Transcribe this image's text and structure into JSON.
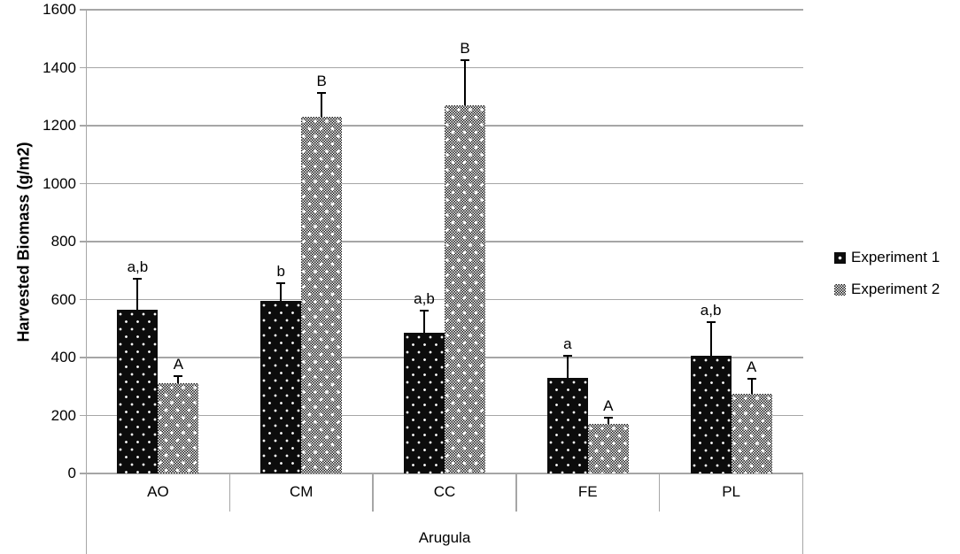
{
  "chart_data": {
    "type": "bar",
    "title": "",
    "ylabel": "Harvested Biomass (g/m2)",
    "xlabel": "",
    "x_group_label": "Arugula",
    "categories": [
      "AO",
      "CM",
      "CC",
      "FE",
      "PL"
    ],
    "ylim": [
      0,
      1600
    ],
    "ytick_step": 200,
    "yticks": [
      "0",
      "200",
      "400",
      "600",
      "800",
      "1000",
      "1200",
      "1400",
      "1600"
    ],
    "grid": true,
    "legend_position": "right",
    "series": [
      {
        "name": "Experiment 1",
        "pattern": "black-with-white-dots",
        "values": [
          565,
          595,
          485,
          330,
          405
        ],
        "error_plus": [
          110,
          65,
          80,
          80,
          120
        ],
        "sig_labels": [
          "a,b",
          "b",
          "a,b",
          "a",
          "a,b"
        ]
      },
      {
        "name": "Experiment 2",
        "pattern": "checkerboard-with-white-dots",
        "values": [
          310,
          1230,
          1270,
          170,
          275
        ],
        "error_plus": [
          30,
          85,
          160,
          25,
          55
        ],
        "sig_labels": [
          "A",
          "B",
          "B",
          "A",
          "A"
        ]
      }
    ],
    "colors": {
      "grid": "#a6a6a6",
      "axis": "#a6a6a6",
      "text": "#000000",
      "bar_exp1": "#0c0c0c",
      "bar_exp2_checker": "#161616",
      "error_bar": "#000000"
    }
  },
  "legend": {
    "items": [
      {
        "label": "Experiment 1"
      },
      {
        "label": "Experiment 2"
      }
    ]
  }
}
